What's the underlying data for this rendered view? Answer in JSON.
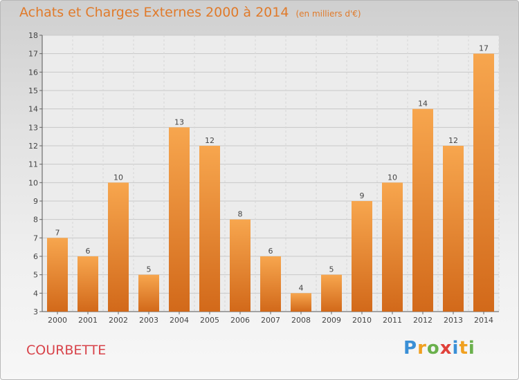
{
  "title": "Achats et Charges Externes 2000 à 2014",
  "unit": "(en milliers d'€)",
  "commune": "COURBETTE",
  "logo": "Proxiti",
  "colors": {
    "bar_top": "#f7a64e",
    "bar_bottom": "#d2691a",
    "title": "#e07a2a",
    "commune": "#d8434a"
  },
  "chart_data": {
    "type": "bar",
    "categories": [
      "2000",
      "2001",
      "2002",
      "2003",
      "2004",
      "2005",
      "2006",
      "2007",
      "2008",
      "2009",
      "2010",
      "2011",
      "2012",
      "2013",
      "2014"
    ],
    "values": [
      7,
      6,
      10,
      5,
      13,
      12,
      8,
      6,
      4,
      5,
      9,
      10,
      14,
      12,
      17
    ],
    "ylim": [
      3,
      18
    ],
    "yticks": [
      3,
      4,
      5,
      6,
      7,
      8,
      9,
      10,
      11,
      12,
      13,
      14,
      15,
      16,
      17,
      18
    ],
    "grid": true,
    "xlabel": "",
    "ylabel": ""
  }
}
